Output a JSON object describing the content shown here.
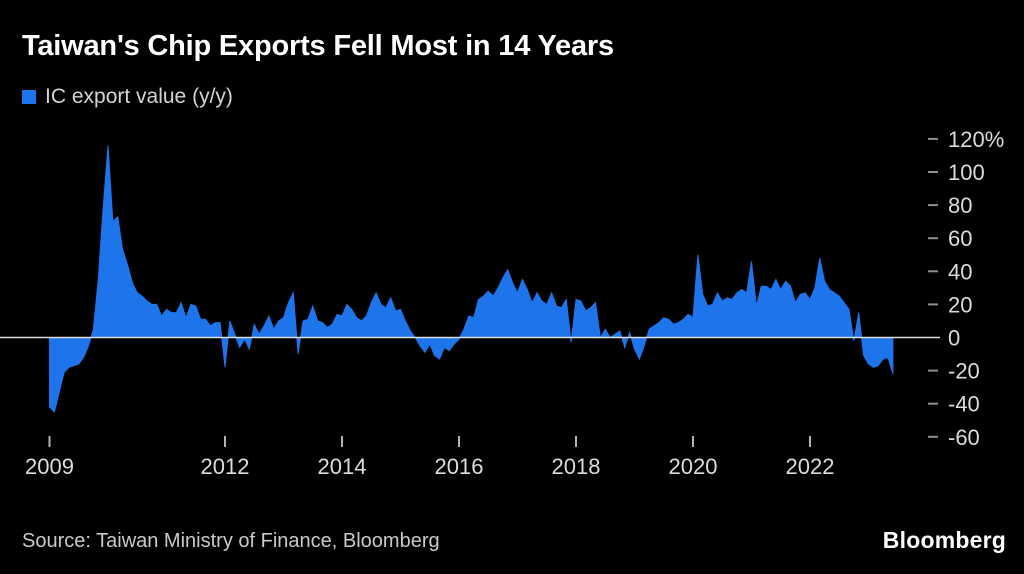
{
  "header": {
    "title": "Taiwan's Chip Exports Fell Most in 14 Years",
    "legend_label": "IC export value (y/y)"
  },
  "footer": {
    "source": "Source: Taiwan Ministry of Finance, Bloomberg",
    "logo_text": "Bloomberg"
  },
  "chart_data": {
    "type": "area",
    "title": "Taiwan's Chip Exports Fell Most in 14 Years",
    "legend_position": "top-left",
    "grid": "off",
    "baseline": 0,
    "series": [
      {
        "name": "IC export value (y/y)",
        "unit": "%",
        "start": "2009-01",
        "end": "2023-06",
        "frequency": "monthly",
        "values": [
          -42,
          -45,
          -33,
          -21,
          -18,
          -17,
          -16,
          -12,
          -5,
          5,
          35,
          78,
          116,
          70,
          73,
          53,
          44,
          33,
          27,
          25,
          22,
          20,
          20,
          13,
          17,
          15,
          15,
          21,
          12,
          20,
          19,
          11,
          11,
          7,
          9,
          9,
          -18,
          10,
          2,
          -6,
          -1,
          -7,
          8,
          2,
          7,
          13,
          5,
          10,
          12,
          21,
          27,
          -10,
          10,
          11,
          19,
          10,
          9,
          6,
          8,
          14,
          13,
          20,
          17,
          12,
          10,
          13,
          21,
          27,
          20,
          18,
          24,
          16,
          17,
          10,
          4,
          0,
          -5,
          -9,
          -4,
          -11,
          -13,
          -6,
          -8,
          -4,
          -1,
          5,
          13,
          12,
          23,
          25,
          28,
          25,
          30,
          36,
          41,
          33,
          27,
          35,
          29,
          21,
          27,
          22,
          20,
          27,
          19,
          18,
          23,
          -3,
          23,
          22,
          16,
          18,
          21,
          0,
          5,
          0,
          2,
          4,
          -6,
          3,
          -7,
          -13,
          -5,
          5,
          7,
          9,
          12,
          11,
          8,
          9,
          11,
          14,
          12,
          50,
          26,
          19,
          20,
          27,
          22,
          24,
          23,
          27,
          29,
          27,
          46,
          19,
          31,
          31,
          29,
          35,
          29,
          34,
          31,
          21,
          26,
          27,
          23,
          30,
          48,
          34,
          29,
          27,
          25,
          21,
          17,
          -2,
          15,
          -11,
          -16,
          -18,
          -17,
          -13,
          -12,
          -22
        ]
      }
    ],
    "x_axis": {
      "tick_labels": [
        "2009",
        "2012",
        "2014",
        "2016",
        "2018",
        "2020",
        "2022"
      ],
      "tick_years": [
        2009,
        2012,
        2014,
        2016,
        2018,
        2020,
        2022
      ]
    },
    "y_axis": {
      "range": [
        -65,
        125
      ],
      "ticks": [
        {
          "label": "120%",
          "value": 120
        },
        {
          "label": "100",
          "value": 100
        },
        {
          "label": "80",
          "value": 80
        },
        {
          "label": "60",
          "value": 60
        },
        {
          "label": "40",
          "value": 40
        },
        {
          "label": "20",
          "value": 20
        },
        {
          "label": "0",
          "value": 0
        },
        {
          "label": "-20",
          "value": -20
        },
        {
          "label": "-40",
          "value": -40
        },
        {
          "label": "-60",
          "value": -60
        }
      ]
    },
    "colors": {
      "area": "#1e74eb",
      "zero_line": "#dcdcdc",
      "tick_dash": "#8f8f8f",
      "tick_text": "#dcdcdc",
      "background": "#000000"
    }
  }
}
